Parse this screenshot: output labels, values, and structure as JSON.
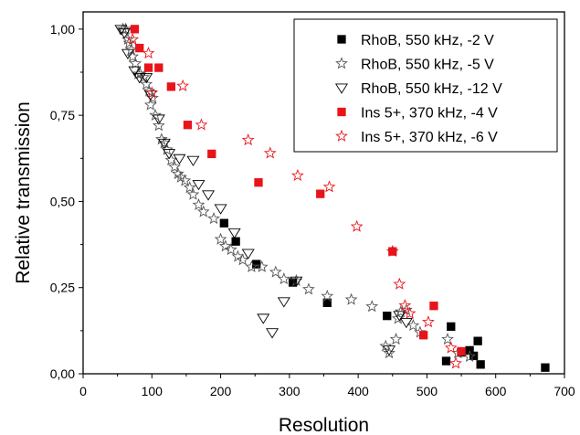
{
  "chart_data": {
    "type": "scatter",
    "title": "",
    "xlabel": "Resolution",
    "ylabel": "Relative transmission",
    "xlim": [
      0,
      700
    ],
    "ylim": [
      0,
      1.05
    ],
    "x_ticks": [
      0,
      100,
      200,
      300,
      400,
      500,
      600,
      700
    ],
    "x_tick_labels": [
      "0",
      "100",
      "200",
      "300",
      "400",
      "500",
      "600",
      "700"
    ],
    "y_ticks": [
      0,
      0.25,
      0.5,
      0.75,
      1.0
    ],
    "y_tick_labels": [
      "0,00",
      "0,25",
      "0,50",
      "0,75",
      "1,00"
    ],
    "grid": false,
    "legend_position": "top-right",
    "series": [
      {
        "name": "RhoB, 550 kHz, -2 V",
        "marker": "square",
        "color": "#000000",
        "filled": true,
        "points": [
          [
            205,
            0.437
          ],
          [
            222,
            0.384
          ],
          [
            252,
            0.318
          ],
          [
            305,
            0.265
          ],
          [
            355,
            0.206
          ],
          [
            442,
            0.168
          ],
          [
            528,
            0.037
          ],
          [
            535,
            0.137
          ],
          [
            550,
            0.062
          ],
          [
            562,
            0.068
          ],
          [
            568,
            0.052
          ],
          [
            574,
            0.095
          ],
          [
            578,
            0.027
          ],
          [
            672,
            0.018
          ]
        ]
      },
      {
        "name": "RhoB, 550 kHz, -5 V",
        "marker": "star",
        "color": "#555555",
        "filled": false,
        "points": [
          [
            58,
            1.0
          ],
          [
            62,
            1.0
          ],
          [
            65,
            0.97
          ],
          [
            67,
            0.96
          ],
          [
            70,
            0.94
          ],
          [
            72,
            0.92
          ],
          [
            76,
            0.9
          ],
          [
            80,
            0.87
          ],
          [
            83,
            0.87
          ],
          [
            88,
            0.86
          ],
          [
            92,
            0.84
          ],
          [
            96,
            0.82
          ],
          [
            98,
            0.78
          ],
          [
            101,
            0.8
          ],
          [
            105,
            0.75
          ],
          [
            110,
            0.72
          ],
          [
            114,
            0.68
          ],
          [
            118,
            0.67
          ],
          [
            122,
            0.65
          ],
          [
            128,
            0.62
          ],
          [
            133,
            0.6
          ],
          [
            138,
            0.58
          ],
          [
            142,
            0.57
          ],
          [
            148,
            0.56
          ],
          [
            155,
            0.54
          ],
          [
            160,
            0.52
          ],
          [
            168,
            0.49
          ],
          [
            175,
            0.47
          ],
          [
            190,
            0.45
          ],
          [
            200,
            0.39
          ],
          [
            207,
            0.37
          ],
          [
            215,
            0.36
          ],
          [
            225,
            0.34
          ],
          [
            232,
            0.33
          ],
          [
            245,
            0.31
          ],
          [
            260,
            0.31
          ],
          [
            280,
            0.295
          ],
          [
            292,
            0.275
          ],
          [
            310,
            0.27
          ],
          [
            328,
            0.245
          ],
          [
            355,
            0.225
          ],
          [
            390,
            0.215
          ],
          [
            420,
            0.195
          ],
          [
            440,
            0.08
          ],
          [
            445,
            0.06
          ],
          [
            455,
            0.1
          ],
          [
            458,
            0.16
          ],
          [
            462,
            0.18
          ],
          [
            470,
            0.185
          ],
          [
            480,
            0.14
          ],
          [
            490,
            0.12
          ],
          [
            530,
            0.1
          ],
          [
            545,
            0.06
          ],
          [
            562,
            0.05
          ]
        ]
      },
      {
        "name": "RhoB, 550 kHz, -12 V",
        "marker": "triangle-down",
        "color": "#000000",
        "filled": false,
        "points": [
          [
            55,
            1.0
          ],
          [
            60,
            0.99
          ],
          [
            65,
            0.93
          ],
          [
            75,
            0.88
          ],
          [
            82,
            0.86
          ],
          [
            92,
            0.86
          ],
          [
            98,
            0.81
          ],
          [
            110,
            0.74
          ],
          [
            118,
            0.67
          ],
          [
            125,
            0.64
          ],
          [
            140,
            0.625
          ],
          [
            160,
            0.62
          ],
          [
            168,
            0.55
          ],
          [
            182,
            0.52
          ],
          [
            200,
            0.48
          ],
          [
            220,
            0.41
          ],
          [
            240,
            0.35
          ],
          [
            262,
            0.162
          ],
          [
            275,
            0.12
          ],
          [
            292,
            0.21
          ],
          [
            310,
            0.27
          ],
          [
            445,
            0.07
          ],
          [
            460,
            0.17
          ],
          [
            470,
            0.15
          ]
        ]
      },
      {
        "name": "Ins 5+, 370 kHz, -4 V",
        "marker": "square",
        "color": "#e8141b",
        "filled": true,
        "points": [
          [
            75,
            1.0
          ],
          [
            82,
            0.945
          ],
          [
            95,
            0.888
          ],
          [
            110,
            0.888
          ],
          [
            128,
            0.833
          ],
          [
            152,
            0.722
          ],
          [
            187,
            0.638
          ],
          [
            255,
            0.555
          ],
          [
            345,
            0.522
          ],
          [
            450,
            0.355
          ],
          [
            495,
            0.112
          ],
          [
            510,
            0.197
          ],
          [
            550,
            0.065
          ]
        ]
      },
      {
        "name": "Ins 5+, 370 kHz, -6 V",
        "marker": "star",
        "color": "#e8141b",
        "filled": false,
        "points": [
          [
            72,
            0.97
          ],
          [
            95,
            0.93
          ],
          [
            100,
            0.815
          ],
          [
            145,
            0.835
          ],
          [
            172,
            0.722
          ],
          [
            240,
            0.678
          ],
          [
            272,
            0.64
          ],
          [
            312,
            0.575
          ],
          [
            358,
            0.542
          ],
          [
            398,
            0.427
          ],
          [
            450,
            0.355
          ],
          [
            460,
            0.26
          ],
          [
            468,
            0.198
          ],
          [
            475,
            0.175
          ],
          [
            502,
            0.15
          ],
          [
            535,
            0.075
          ],
          [
            542,
            0.03
          ]
        ]
      }
    ]
  }
}
